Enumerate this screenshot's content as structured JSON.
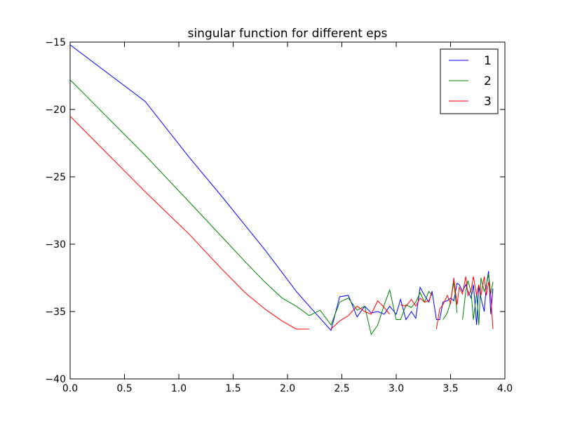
{
  "chart_data": {
    "type": "line",
    "title": "singular function for different eps",
    "xlabel": "",
    "ylabel": "",
    "xlim": [
      0.0,
      4.0
    ],
    "ylim": [
      -40,
      -15
    ],
    "xticks": [
      0.0,
      0.5,
      1.0,
      1.5,
      2.0,
      2.5,
      3.0,
      3.5,
      4.0
    ],
    "xtick_labels": [
      "0.0",
      "0.5",
      "1.0",
      "1.5",
      "2.0",
      "2.5",
      "3.0",
      "3.5",
      "4.0"
    ],
    "yticks": [
      -40,
      -35,
      -30,
      -25,
      -20,
      -15
    ],
    "ytick_labels": [
      "−40",
      "−35",
      "−30",
      "−25",
      "−20",
      "−15"
    ],
    "grid": false,
    "legend_position": "top-right",
    "series": [
      {
        "name": "1",
        "color": "#0000ff",
        "segments": [
          [
            [
              0.0,
              -15.2
            ],
            [
              0.69,
              -19.4
            ],
            [
              1.1,
              -23.6
            ],
            [
              1.39,
              -26.4
            ],
            [
              1.61,
              -28.6
            ],
            [
              1.79,
              -30.4
            ],
            [
              1.95,
              -32.1
            ],
            [
              2.08,
              -33.5
            ],
            [
              2.2,
              -34.6
            ],
            [
              2.3,
              -35.5
            ],
            [
              2.4,
              -36.4
            ],
            [
              2.48,
              -33.9
            ],
            [
              2.56,
              -33.8
            ],
            [
              2.64,
              -35.4
            ],
            [
              2.71,
              -34.6
            ],
            [
              2.77,
              -35.1
            ],
            [
              2.83,
              -35.0
            ],
            [
              2.89,
              -35.2
            ],
            [
              2.94,
              -34.6
            ],
            [
              3.0,
              -35.2
            ],
            [
              3.04,
              -34.1
            ],
            [
              3.09,
              -35.6
            ],
            [
              3.14,
              -35.0
            ],
            [
              3.18,
              -35.5
            ],
            [
              3.22,
              -33.2
            ],
            [
              3.26,
              -33.8
            ],
            [
              3.3,
              -34.3
            ],
            [
              3.33,
              -33.5
            ],
            [
              3.37,
              -35.6
            ],
            [
              3.4,
              -35.6
            ],
            [
              3.43,
              -34.3
            ],
            [
              3.47,
              -34.2
            ],
            [
              3.5,
              -34.0
            ],
            [
              3.53,
              -34.2
            ],
            [
              3.56,
              -32.9
            ],
            [
              3.58,
              -33.0
            ],
            [
              3.61,
              -33.5
            ],
            [
              3.64,
              -33.0
            ],
            [
              3.66,
              -33.5
            ],
            [
              3.69,
              -34.0
            ],
            [
              3.71,
              -33.0
            ],
            [
              3.74,
              -36.0
            ],
            [
              3.76,
              -33.1
            ],
            [
              3.78,
              -34.0
            ],
            [
              3.81,
              -35.0
            ],
            [
              3.83,
              -33.0
            ],
            [
              3.85,
              -32.0
            ],
            [
              3.87,
              -35.2
            ],
            [
              3.89,
              -33.3
            ]
          ]
        ]
      },
      {
        "name": "2",
        "color": "#008000",
        "segments": [
          [
            [
              0.0,
              -17.8
            ],
            [
              0.69,
              -23.4
            ],
            [
              1.1,
              -26.9
            ],
            [
              1.39,
              -29.4
            ],
            [
              1.61,
              -31.3
            ],
            [
              1.79,
              -32.8
            ],
            [
              1.95,
              -34.0
            ],
            [
              2.08,
              -34.6
            ],
            [
              2.2,
              -35.3
            ],
            [
              2.3,
              -34.9
            ],
            [
              2.4,
              -36.0
            ],
            [
              2.48,
              -34.3
            ],
            [
              2.56,
              -34.0
            ],
            [
              2.64,
              -34.9
            ],
            [
              2.71,
              -34.6
            ],
            [
              2.77,
              -36.7
            ],
            [
              2.83,
              -36.0
            ],
            [
              2.89,
              -34.5
            ],
            [
              2.94,
              -33.4
            ],
            [
              3.0,
              -35.6
            ],
            [
              3.04,
              -35.6
            ],
            [
              3.09,
              -34.5
            ],
            [
              3.14,
              -34.7
            ],
            [
              3.18,
              -34.3
            ],
            [
              3.22,
              -33.6
            ],
            [
              3.26,
              -34.3
            ],
            [
              3.3,
              -33.5
            ],
            [
              3.33,
              -33.8
            ]
          ],
          [
            [
              3.43,
              -35.6
            ],
            [
              3.47,
              -35.1
            ],
            [
              3.5,
              -34.3
            ],
            [
              3.53,
              -32.8
            ],
            [
              3.56,
              -35.1
            ]
          ],
          [
            [
              3.61,
              -35.6
            ],
            [
              3.64,
              -33.5
            ],
            [
              3.66,
              -32.7
            ],
            [
              3.69,
              -33.6
            ],
            [
              3.71,
              -35.6
            ],
            [
              3.74,
              -33.6
            ],
            [
              3.76,
              -36.0
            ],
            [
              3.78,
              -32.5
            ],
            [
              3.81,
              -33.5
            ],
            [
              3.83,
              -33.0
            ],
            [
              3.85,
              -32.2
            ],
            [
              3.87,
              -33.7
            ],
            [
              3.89,
              -32.8
            ]
          ]
        ]
      },
      {
        "name": "3",
        "color": "#ff0000",
        "segments": [
          [
            [
              0.0,
              -20.5
            ],
            [
              0.69,
              -26.1
            ],
            [
              1.1,
              -29.3
            ],
            [
              1.39,
              -31.8
            ],
            [
              1.61,
              -33.6
            ],
            [
              1.79,
              -34.8
            ],
            [
              1.95,
              -35.7
            ],
            [
              2.08,
              -36.3
            ],
            [
              2.2,
              -36.3
            ]
          ],
          [
            [
              2.4,
              -36.3
            ],
            [
              2.48,
              -35.7
            ],
            [
              2.56,
              -35.3
            ],
            [
              2.64,
              -34.6
            ],
            [
              2.71,
              -35.0
            ],
            [
              2.77,
              -35.2
            ],
            [
              2.83,
              -34.2
            ],
            [
              2.89,
              -34.7
            ],
            [
              2.94,
              -35.2
            ]
          ],
          [
            [
              3.04,
              -34.5
            ],
            [
              3.09,
              -34.6
            ],
            [
              3.14,
              -34.1
            ],
            [
              3.18,
              -34.6
            ],
            [
              3.22,
              -34.0
            ],
            [
              3.26,
              -34.3
            ],
            [
              3.3,
              -34.2
            ],
            [
              3.33,
              -33.6
            ]
          ],
          [
            [
              3.37,
              -36.3
            ],
            [
              3.4,
              -34.8
            ],
            [
              3.43,
              -34.5
            ],
            [
              3.47,
              -33.8
            ],
            [
              3.5,
              -34.4
            ],
            [
              3.53,
              -32.5
            ],
            [
              3.56,
              -34.5
            ],
            [
              3.58,
              -33.2
            ],
            [
              3.61,
              -33.7
            ],
            [
              3.64,
              -32.4
            ],
            [
              3.66,
              -33.8
            ],
            [
              3.69,
              -33.4
            ],
            [
              3.71,
              -32.4
            ],
            [
              3.74,
              -33.8
            ],
            [
              3.76,
              -33.0
            ],
            [
              3.78,
              -33.8
            ],
            [
              3.81,
              -32.4
            ],
            [
              3.83,
              -33.8
            ],
            [
              3.85,
              -32.8
            ],
            [
              3.87,
              -33.8
            ],
            [
              3.89,
              -36.3
            ]
          ]
        ]
      }
    ]
  }
}
